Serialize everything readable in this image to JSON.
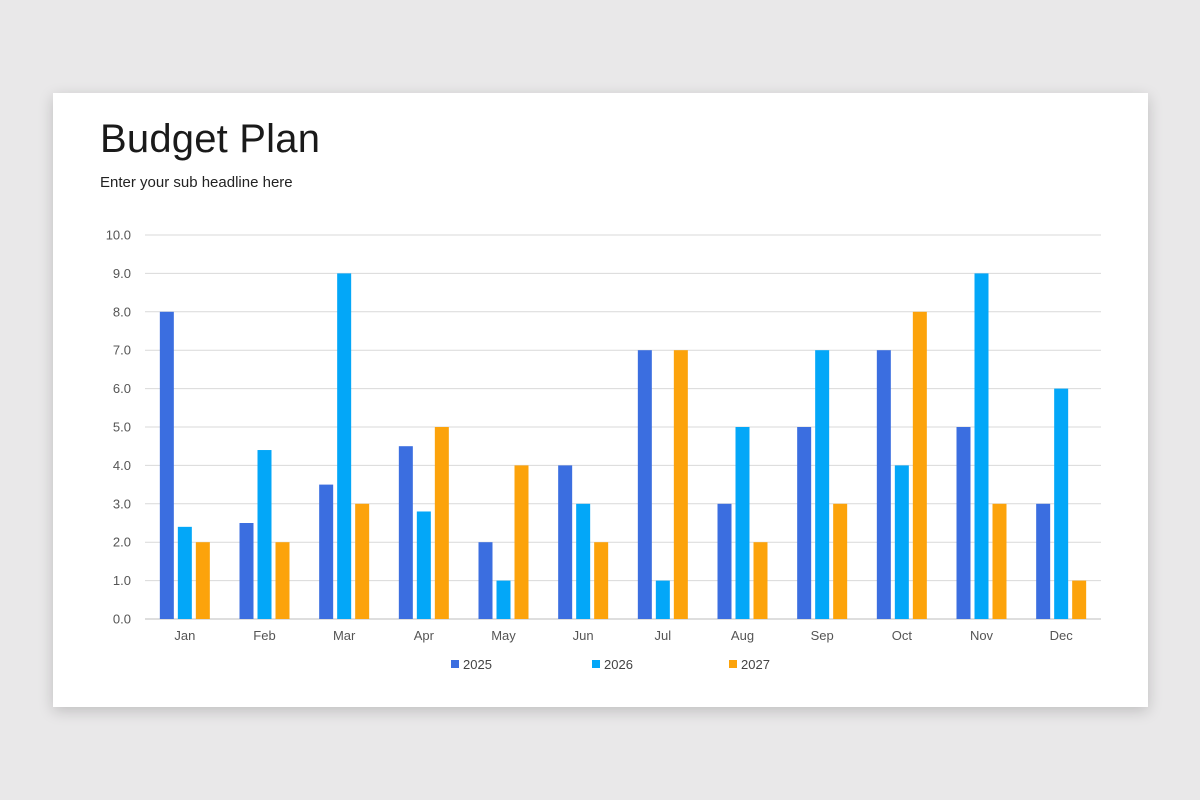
{
  "slide": {
    "title": "Budget Plan",
    "subtitle": "Enter your sub headline here"
  },
  "chart_data": {
    "type": "bar",
    "title": "",
    "xlabel": "",
    "ylabel": "",
    "ylim": [
      0,
      10
    ],
    "yticks": [
      "0.0",
      "1.0",
      "2.0",
      "3.0",
      "4.0",
      "5.0",
      "6.0",
      "7.0",
      "8.0",
      "9.0",
      "10.0"
    ],
    "grid": true,
    "legend": "bottom",
    "categories": [
      "Jan",
      "Feb",
      "Mar",
      "Apr",
      "May",
      "Jun",
      "Jul",
      "Aug",
      "Sep",
      "Oct",
      "Nov",
      "Dec"
    ],
    "series": [
      {
        "name": "2025",
        "color": "#3b6ee0",
        "values": [
          8,
          2.5,
          3.5,
          4.5,
          2,
          4,
          7,
          3,
          5,
          7,
          5,
          3
        ]
      },
      {
        "name": "2026",
        "color": "#03a7f8",
        "values": [
          2.4,
          4.4,
          9,
          2.8,
          1,
          3,
          1,
          5,
          7,
          4,
          9,
          6
        ]
      },
      {
        "name": "2027",
        "color": "#fca30b",
        "values": [
          2,
          2,
          3,
          5,
          4,
          2,
          7,
          2,
          3,
          8,
          3,
          1
        ]
      }
    ]
  }
}
